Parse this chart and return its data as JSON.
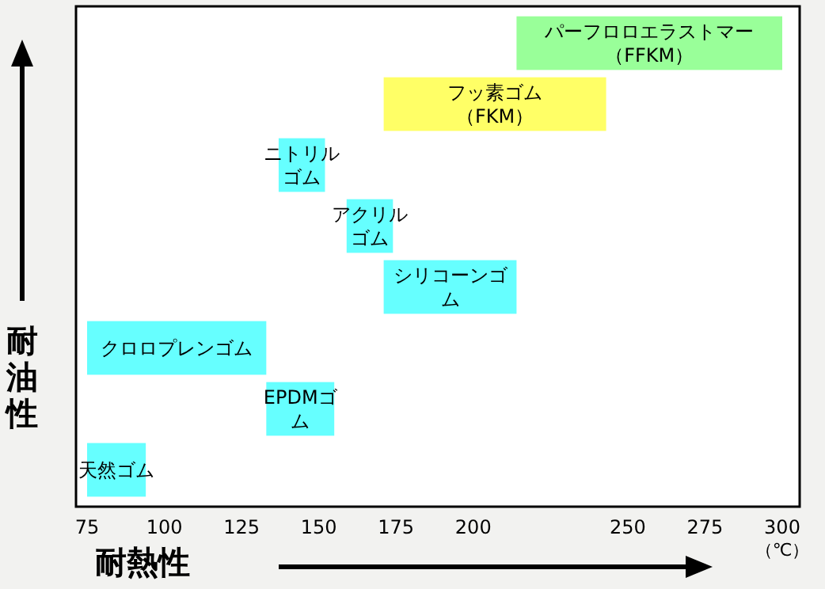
{
  "chart_data": {
    "type": "bar",
    "orientation": "horizontal",
    "xlabel": "耐熱性",
    "ylabel": "耐油性",
    "categories": [
      "パーフロロエラストマー（FFKM）",
      "フッ素ゴム（FKM）",
      "ニトリルゴム",
      "アクリルゴム",
      "シリコーンゴム",
      "クロロプレンゴム",
      "EPDMゴム",
      "天然ゴム"
    ],
    "base": [
      214,
      171,
      137,
      159,
      171,
      75,
      133,
      75
    ],
    "values": [
      86,
      72,
      15,
      15,
      43,
      58,
      22,
      19
    ],
    "colors": [
      "#99ff99",
      "#ffff66",
      "#66ffff",
      "#66ffff",
      "#66ffff",
      "#66ffff",
      "#66ffff",
      "#66ffff"
    ],
    "xlim": [
      75,
      300
    ],
    "xticks": [
      75,
      100,
      125,
      150,
      175,
      200,
      250,
      275,
      300
    ],
    "annotations": [
      "（℃）"
    ]
  }
}
